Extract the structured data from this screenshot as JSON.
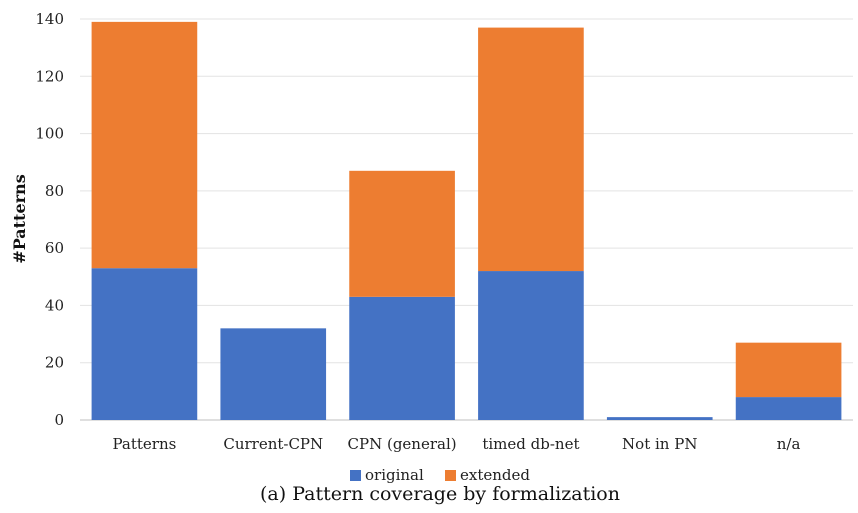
{
  "chart_data": {
    "type": "bar",
    "stacked": true,
    "categories": [
      "Patterns",
      "Current-CPN",
      "CPN (general)",
      "timed db-net",
      "Not in PN",
      "n/a"
    ],
    "series": [
      {
        "name": "original",
        "values": [
          53,
          32,
          43,
          52,
          1,
          8
        ],
        "color": "#4472C4"
      },
      {
        "name": "extended",
        "values": [
          86,
          0,
          44,
          85,
          0,
          19
        ],
        "color": "#ED7D31"
      }
    ],
    "ylabel": "#Patterns",
    "ylim": [
      0,
      140
    ],
    "yticks": [
      0,
      20,
      40,
      60,
      80,
      100,
      120,
      140
    ],
    "grid": true,
    "legend_position": "bottom",
    "caption": "(a) Pattern coverage by formalization"
  }
}
